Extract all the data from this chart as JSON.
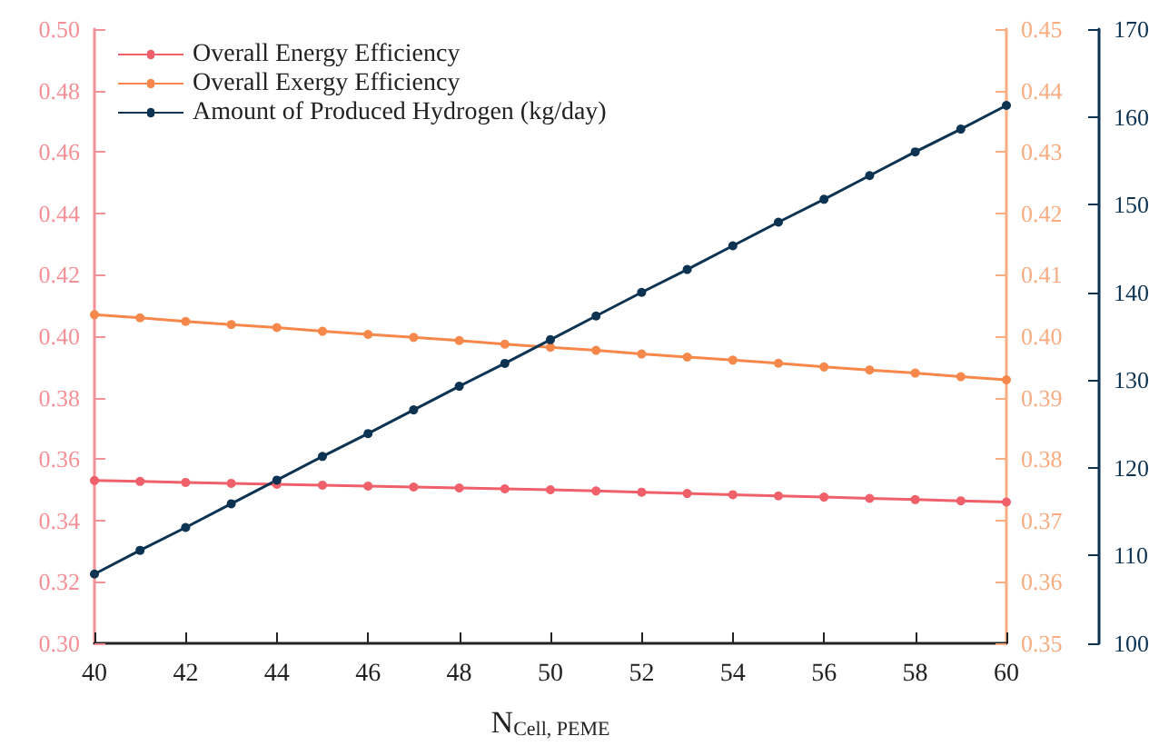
{
  "chart_data": {
    "type": "line",
    "xlabel": "N$_{Cell, PEME}$",
    "x": [
      40,
      41,
      42,
      43,
      44,
      45,
      46,
      47,
      48,
      49,
      50,
      51,
      52,
      53,
      54,
      55,
      56,
      57,
      58,
      59,
      60
    ],
    "xlim": [
      40,
      60
    ],
    "xticks": [
      40,
      42,
      44,
      46,
      48,
      50,
      52,
      54,
      56,
      58,
      60
    ],
    "ylim": [
      0.3,
      0.5
    ],
    "yticks": [
      {
        "value": 0.3,
        "label": "0.30"
      },
      0.32,
      0.34,
      0.36,
      0.38,
      {
        "value": 0.4,
        "label": "0.40"
      },
      0.42,
      0.44,
      0.46,
      0.48,
      {
        "value": 0.5,
        "label": "0.50"
      }
    ],
    "y2lim": [
      0.35,
      0.45
    ],
    "y2ticks": [
      0.35,
      0.36,
      0.37,
      0.38,
      0.39,
      {
        "value": 0.4,
        "label": "0.40"
      },
      0.41,
      0.42,
      0.43,
      0.44,
      0.45
    ],
    "y3lim": [
      100,
      170
    ],
    "y3ticks": [
      100,
      110,
      120,
      130,
      140,
      150,
      160,
      170
    ],
    "series": [
      {
        "name": "Overall Energy Efficiency",
        "color": "#f0606a",
        "values": [
          0.353,
          0.3527,
          0.3524,
          0.3521,
          0.3518,
          0.3515,
          0.3512,
          0.3509,
          0.3506,
          0.3503,
          0.35,
          0.3496,
          0.3492,
          0.3488,
          0.3484,
          0.348,
          0.3476,
          0.3472,
          0.3468,
          0.3464,
          0.346
        ]
      },
      {
        "name": "Overall Exergy Efficiency",
        "color": "#f5884a",
        "axis": "y2",
        "values": [
          0.4035,
          0.403,
          0.4024,
          0.4019,
          0.4014,
          0.4008,
          0.4003,
          0.3998,
          0.3993,
          0.3987,
          0.3982,
          0.3977,
          0.3971,
          0.3966,
          0.3961,
          0.3956,
          0.395,
          0.3945,
          0.394,
          0.3934,
          0.3929
        ]
      },
      {
        "name": "Amount of Produced Hydrogen (kg/day)",
        "color": "#0d3352",
        "axis": "y3",
        "values": [
          107.9,
          110.6,
          113.2,
          115.9,
          118.6,
          121.3,
          123.9,
          126.6,
          129.3,
          131.9,
          134.6,
          137.3,
          140.0,
          142.6,
          145.3,
          148.0,
          150.6,
          153.3,
          156.0,
          158.6,
          161.3
        ]
      }
    ],
    "legend": "top left",
    "grid": false,
    "marker": "circle",
    "line_style": "solid"
  }
}
